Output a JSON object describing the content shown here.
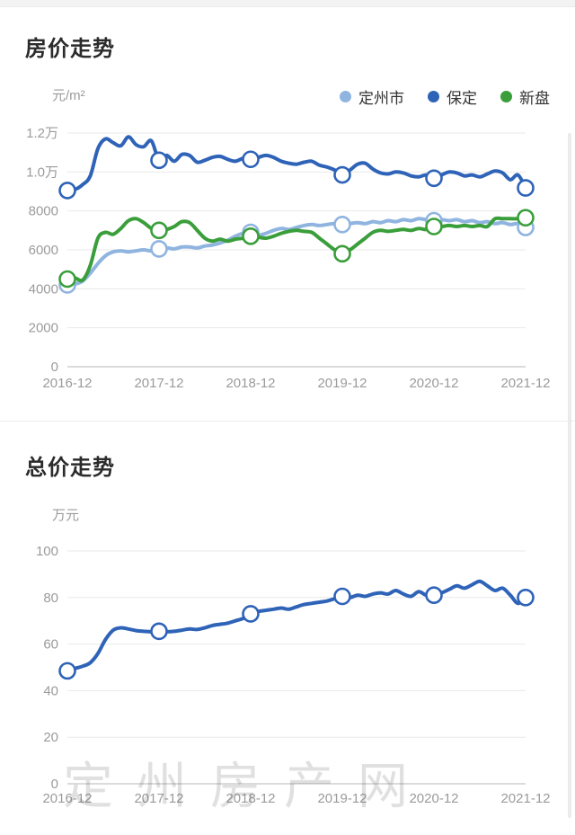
{
  "price_section": {
    "title": "房价走势",
    "unit": "元/m²",
    "legend": [
      {
        "label": "定州市",
        "color": "#8fb4e0"
      },
      {
        "label": "保定",
        "color": "#2e63b8"
      },
      {
        "label": "新盘",
        "color": "#3a9e3b"
      }
    ]
  },
  "total_section": {
    "title": "总价走势",
    "unit": "万元"
  },
  "watermark": "定州房产网",
  "colors": {
    "dingzhou": "#8fb4e0",
    "baoding": "#2e63b8",
    "xinpan": "#3a9e3b",
    "grid": "#e9e9e9",
    "axis": "#cfcfcf",
    "tick_text": "#9b9b9b"
  },
  "chart_data": [
    {
      "type": "line",
      "title": "房价走势",
      "ylabel": "元/m²",
      "x_ticks": [
        "2016-12",
        "2017-12",
        "2018-12",
        "2019-12",
        "2020-12",
        "2021-12"
      ],
      "months_per_tick": 12,
      "ylim": [
        0,
        12000
      ],
      "y_ticks": [
        {
          "value": 0,
          "label": "0"
        },
        {
          "value": 2000,
          "label": "2000"
        },
        {
          "value": 4000,
          "label": "4000"
        },
        {
          "value": 6000,
          "label": "6000"
        },
        {
          "value": 8000,
          "label": "8000"
        },
        {
          "value": 10000,
          "label": "1.0万"
        },
        {
          "value": 12000,
          "label": "1.2万"
        }
      ],
      "marker_every": 12,
      "grid": true,
      "legend_position": "top-right",
      "series": [
        {
          "name": "定州市",
          "color": "#8fb4e0",
          "values": [
            4200,
            4250,
            4400,
            4800,
            5300,
            5700,
            5900,
            5950,
            5900,
            5950,
            6000,
            5950,
            6050,
            6100,
            6050,
            6150,
            6150,
            6100,
            6200,
            6250,
            6350,
            6500,
            6700,
            6850,
            6900,
            6750,
            6850,
            7000,
            7100,
            7050,
            7150,
            7250,
            7300,
            7250,
            7300,
            7350,
            7300,
            7350,
            7400,
            7350,
            7450,
            7400,
            7500,
            7450,
            7550,
            7500,
            7600,
            7550,
            7500,
            7550,
            7500,
            7550,
            7450,
            7500,
            7400,
            7450,
            7350,
            7400,
            7300,
            7350,
            7150
          ]
        },
        {
          "name": "新盘",
          "color": "#3a9e3b",
          "values": [
            4500,
            4550,
            4450,
            5200,
            6600,
            6900,
            6800,
            7100,
            7500,
            7600,
            7400,
            7100,
            7000,
            7050,
            7200,
            7450,
            7400,
            7000,
            6600,
            6450,
            6550,
            6450,
            6550,
            6600,
            6700,
            6650,
            6600,
            6700,
            6850,
            6950,
            7000,
            6950,
            6900,
            6600,
            6300,
            6000,
            5800,
            6000,
            6300,
            6600,
            6900,
            7000,
            6950,
            7000,
            7050,
            7000,
            7100,
            7050,
            7200,
            7200,
            7250,
            7200,
            7250,
            7200,
            7250,
            7200,
            7600,
            7600,
            7600,
            7600,
            7650
          ]
        },
        {
          "name": "保定",
          "color": "#2e63b8",
          "values": [
            9050,
            9100,
            9350,
            9800,
            11200,
            11700,
            11500,
            11350,
            11800,
            11400,
            11300,
            11600,
            10600,
            10850,
            10550,
            10900,
            10850,
            10500,
            10600,
            10750,
            10800,
            10650,
            10550,
            10700,
            10650,
            10750,
            10850,
            10750,
            10550,
            10450,
            10400,
            10500,
            10550,
            10350,
            10250,
            10100,
            9850,
            10100,
            10400,
            10450,
            10150,
            9950,
            9900,
            10000,
            9950,
            9800,
            9750,
            9850,
            9680,
            9850,
            10000,
            9950,
            9800,
            9850,
            9750,
            9900,
            10050,
            9950,
            9600,
            9850,
            9180
          ]
        }
      ],
      "yearly_marker_values": {
        "定州市": [
          4200,
          6050,
          6900,
          7300,
          7500,
          7150
        ],
        "新盘": [
          4500,
          7000,
          6700,
          5800,
          7200,
          7650
        ],
        "保定": [
          9050,
          10600,
          10650,
          9850,
          9680,
          9180
        ]
      }
    },
    {
      "type": "line",
      "title": "总价走势",
      "ylabel": "万元",
      "x_ticks": [
        "2016-12",
        "2017-12",
        "2018-12",
        "2019-12",
        "2020-12",
        "2021-12"
      ],
      "months_per_tick": 12,
      "ylim": [
        0,
        100
      ],
      "y_ticks": [
        {
          "value": 0,
          "label": "0"
        },
        {
          "value": 20,
          "label": "20"
        },
        {
          "value": 40,
          "label": "40"
        },
        {
          "value": 60,
          "label": "60"
        },
        {
          "value": 80,
          "label": "80"
        },
        {
          "value": 100,
          "label": "100"
        }
      ],
      "marker_every": 12,
      "grid": true,
      "legend_position": "none",
      "series": [
        {
          "name": "总价",
          "color": "#2e63b8",
          "values": [
            48.5,
            49.5,
            50.5,
            52,
            56,
            62,
            66,
            67,
            66.5,
            65.8,
            65.5,
            65.3,
            65.5,
            65.3,
            65.5,
            66,
            66.5,
            66.3,
            67,
            68,
            68.5,
            69,
            70,
            71,
            73,
            74,
            74.5,
            75,
            75.5,
            75,
            76,
            77,
            77.5,
            78,
            78.5,
            79.5,
            80.5,
            80,
            81,
            80.5,
            81.5,
            82,
            81.5,
            83,
            81.5,
            80.5,
            82.5,
            81,
            81,
            82,
            83.5,
            85,
            84,
            85.5,
            87,
            85,
            83,
            84,
            81,
            77.5,
            80
          ]
        }
      ],
      "yearly_marker_values": {
        "总价": [
          48.5,
          65.5,
          73,
          80.5,
          81,
          80
        ]
      }
    }
  ]
}
